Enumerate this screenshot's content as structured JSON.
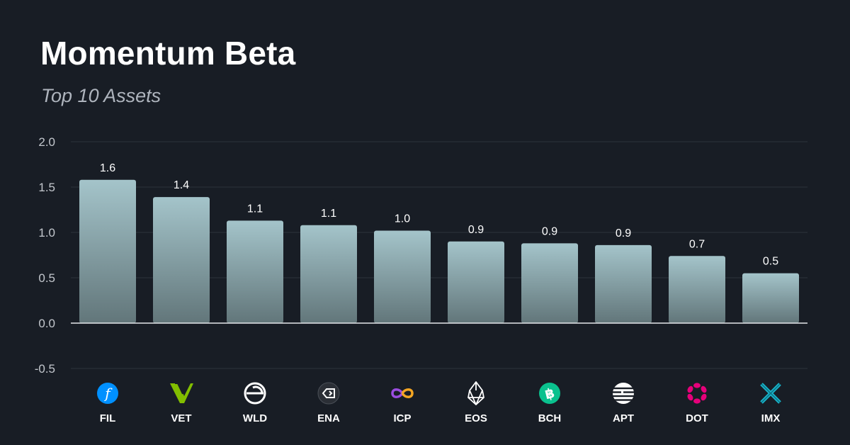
{
  "chart_data": {
    "type": "bar",
    "title": "Momentum Beta",
    "subtitle": "Top 10 Assets",
    "categories": [
      "FIL",
      "VET",
      "WLD",
      "ENA",
      "ICP",
      "EOS",
      "BCH",
      "APT",
      "DOT",
      "IMX"
    ],
    "values": [
      1.58,
      1.39,
      1.13,
      1.08,
      1.02,
      0.9,
      0.88,
      0.86,
      0.74,
      0.55
    ],
    "value_labels": [
      "1.6",
      "1.4",
      "1.1",
      "1.1",
      "1.0",
      "0.9",
      "0.9",
      "0.9",
      "0.7",
      "0.5"
    ],
    "y_ticks": [
      "2.0",
      "1.5",
      "1.0",
      "0.5",
      "0.0",
      "-0.5"
    ],
    "ylim": [
      -0.5,
      2.0
    ],
    "grid": true,
    "legend": "none",
    "icons": [
      "filecoin-icon",
      "vechain-icon",
      "worldcoin-icon",
      "ethena-icon",
      "internet-computer-icon",
      "eos-icon",
      "bitcoin-cash-icon",
      "aptos-icon",
      "polkadot-icon",
      "immutable-x-icon"
    ],
    "colors": {
      "background": "#181d25",
      "bar_top": "#a4c4ca",
      "bar_bottom": "#62767a",
      "grid": "#262c35",
      "zero_line": "#e6e8eb"
    }
  }
}
